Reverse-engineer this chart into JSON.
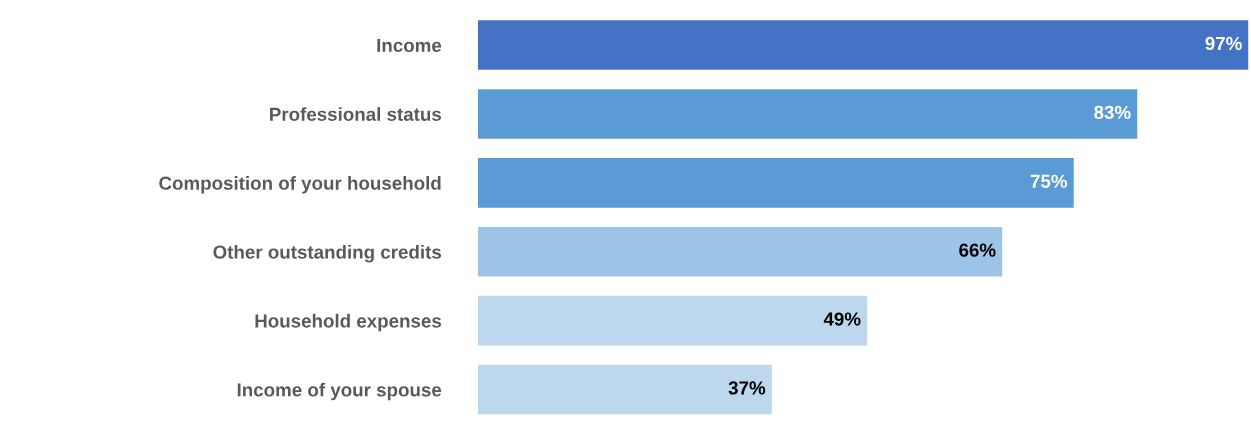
{
  "chart_data": {
    "type": "bar",
    "orientation": "horizontal",
    "categories": [
      "Income",
      "Professional status",
      "Composition of your household",
      "Other outstanding credits",
      "Household expenses",
      "Income of your spouse"
    ],
    "values": [
      97,
      83,
      75,
      66,
      49,
      37
    ],
    "value_labels": [
      "97%",
      "83%",
      "75%",
      "66%",
      "49%",
      "37%"
    ],
    "colors": [
      "#4472c4",
      "#5b9bd5",
      "#5b9bd5",
      "#9dc3e6",
      "#bdd7ee",
      "#bdd7ee"
    ],
    "grid": false,
    "legend": false
  }
}
